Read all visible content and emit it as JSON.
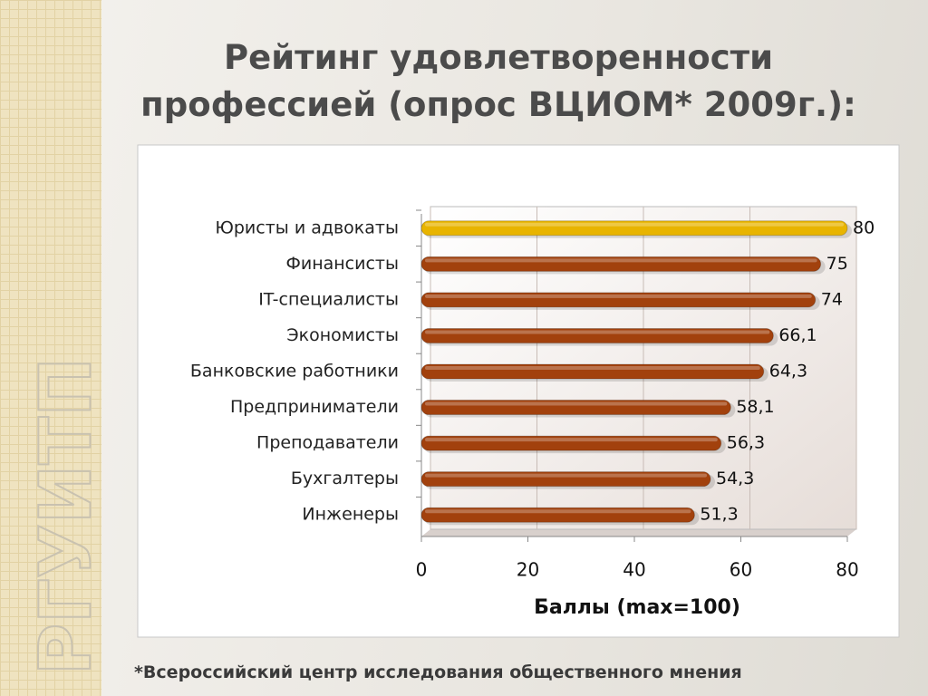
{
  "logo": "РГУИТП",
  "title_lines": [
    "Рейтинг удовлетворенности",
    "профессией (опрос ВЦИОМ* 2009г.):"
  ],
  "footnote": "*Всероссийский центр исследования общественного мнения",
  "chart_data": {
    "type": "hbar",
    "categories": [
      "Юристы и адвокаты",
      "Финансисты",
      "IT-специалисты",
      "Экономисты",
      "Банковские работники",
      "Предприниматели",
      "Преподаватели",
      "Бухгалтеры",
      "Инженеры"
    ],
    "values": [
      80,
      75,
      74,
      66.1,
      64.3,
      58.1,
      56.3,
      54.3,
      51.3
    ],
    "value_labels": [
      "80",
      "75",
      "74",
      "66,1",
      "64,3",
      "58,1",
      "56,3",
      "54,3",
      "51,3"
    ],
    "colors": [
      "#e8b400",
      "#a2410d",
      "#a2410d",
      "#a2410d",
      "#a2410d",
      "#a2410d",
      "#a2410d",
      "#a2410d",
      "#a2410d"
    ],
    "xlim": [
      0,
      80
    ],
    "xticks": [
      0,
      20,
      40,
      60,
      80
    ],
    "xlabel": "Баллы (max=100)",
    "grid": true
  }
}
